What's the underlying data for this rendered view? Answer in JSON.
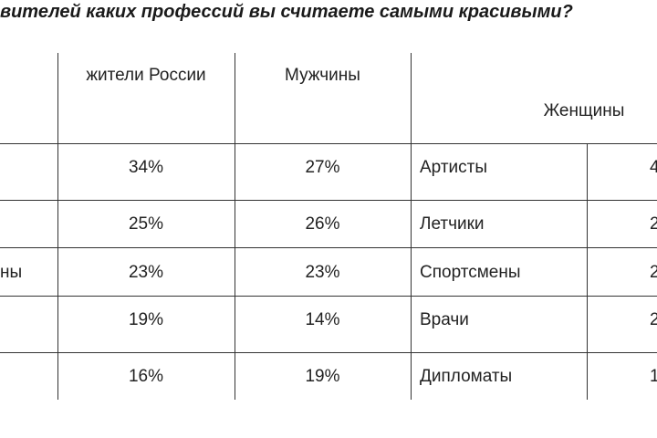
{
  "chart_data": {
    "type": "table",
    "title": "вителей каких профессий вы считаете самыми красивыми?",
    "columns": [
      "жители России",
      "Мужчины",
      "Женщины"
    ],
    "rows": [
      {
        "label": "",
        "values": [
          "34%",
          "27%"
        ],
        "women_profession": "Артисты",
        "women_value": "4"
      },
      {
        "label": "",
        "values": [
          "25%",
          "26%"
        ],
        "women_profession": "Летчики",
        "women_value": "2"
      },
      {
        "label": "ны",
        "values": [
          "23%",
          "23%"
        ],
        "women_profession": "Спортсмены",
        "women_value": "2"
      },
      {
        "label": "",
        "values": [
          "19%",
          "14%"
        ],
        "women_profession": "Врачи",
        "women_value": "2"
      },
      {
        "label": "",
        "values": [
          "16%",
          "19%"
        ],
        "women_profession": "Дипломаты",
        "women_value": "1"
      }
    ]
  }
}
